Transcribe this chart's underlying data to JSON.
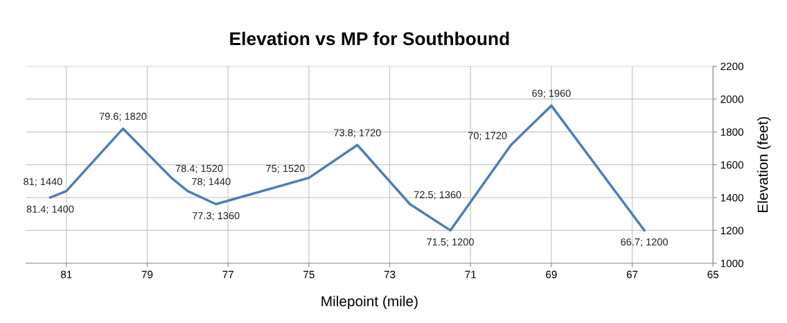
{
  "chart_data": {
    "type": "line",
    "title": "Elevation vs MP for Southbound",
    "xlabel": "Milepoint (mile)",
    "ylabel": "Elevation (feet)",
    "x": [
      81.4,
      81,
      79.6,
      78.4,
      78,
      77.3,
      75,
      73.8,
      72.5,
      71.5,
      70,
      69,
      66.7
    ],
    "series": [
      {
        "color": "#4a7ebb",
        "values": [
          1400,
          1440,
          1820,
          1520,
          1440,
          1360,
          1520,
          1720,
          1360,
          1200,
          1720,
          1960,
          1200
        ],
        "value_labels": [
          "81.4; 1400",
          "81; 1440",
          "79.6; 1820",
          "78.4; 1520",
          "78; 1440",
          "77.3; 1360",
          "75; 1520",
          "73.8; 1720",
          "72.5; 1360",
          "71.5; 1200",
          "70; 1720",
          "69; 1960",
          "66.7; 1200"
        ]
      }
    ],
    "xlim": [
      82,
      65
    ],
    "xticks": [
      81,
      79,
      77,
      75,
      73,
      71,
      69,
      67,
      65
    ],
    "ylim": [
      1000,
      2200
    ],
    "yticks": [
      1000,
      1200,
      1400,
      1600,
      1800,
      2000,
      2200
    ],
    "grid": true,
    "marker": "none",
    "line_style": "solid",
    "legend": false
  }
}
